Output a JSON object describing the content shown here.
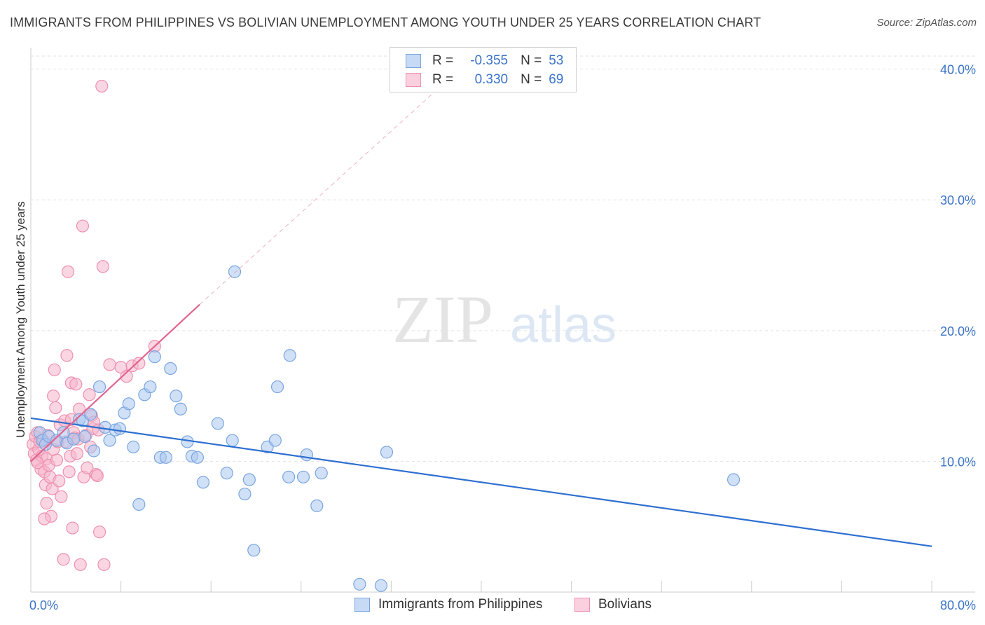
{
  "header": {
    "title": "IMMIGRANTS FROM PHILIPPINES VS BOLIVIAN UNEMPLOYMENT AMONG YOUTH UNDER 25 YEARS CORRELATION CHART",
    "source": "Source: ZipAtlas.com"
  },
  "watermark": {
    "zip": "ZIP",
    "atlas": "atlas"
  },
  "stats_legend": {
    "rows": [
      {
        "r_label": "R =",
        "r_value": "-0.355",
        "n_label": "N =",
        "n_value": "53",
        "color": "#a9c7f0"
      },
      {
        "r_label": "R =",
        "r_value": "0.330",
        "n_label": "N =",
        "n_value": "69",
        "color": "#f6b5ca"
      }
    ]
  },
  "colors": {
    "blue_fill": "#a9c7f0",
    "blue_stroke": "#7aa6e0",
    "blue_line": "#2e6fd0",
    "pink_fill": "#f6b5ca",
    "pink_stroke": "#ee90ae",
    "pink_line": "#e0648f",
    "axis_text": "#3a73c8",
    "grid": "#e2e2e2"
  },
  "chart_data": {
    "type": "scatter",
    "title": "IMMIGRANTS FROM PHILIPPINES VS BOLIVIAN UNEMPLOYMENT AMONG YOUTH UNDER 25 YEARS CORRELATION CHART",
    "xlabel": "",
    "ylabel": "Unemployment Among Youth under 25 years",
    "x_ticks": [
      "0.0%",
      "80.0%"
    ],
    "y_ticks": [
      "10.0%",
      "20.0%",
      "30.0%",
      "40.0%"
    ],
    "xlim": [
      0,
      80
    ],
    "ylim": [
      0,
      41
    ],
    "grid": true,
    "legend_position": "bottom",
    "series": [
      {
        "name": "Immigrants from Philippines",
        "color": "#a9c7f0",
        "points": [
          [
            0.8,
            12.2
          ],
          [
            1.0,
            11.6
          ],
          [
            1.3,
            11.3
          ],
          [
            1.6,
            11.9
          ],
          [
            2.3,
            11.6
          ],
          [
            2.9,
            12.2
          ],
          [
            3.2,
            11.4
          ],
          [
            3.8,
            11.7
          ],
          [
            4.3,
            13.2
          ],
          [
            4.6,
            13.1
          ],
          [
            4.8,
            11.9
          ],
          [
            5.3,
            13.6
          ],
          [
            5.6,
            10.8
          ],
          [
            6.1,
            15.7
          ],
          [
            6.6,
            12.6
          ],
          [
            7.0,
            11.6
          ],
          [
            7.5,
            12.4
          ],
          [
            7.9,
            12.5
          ],
          [
            8.3,
            13.7
          ],
          [
            8.7,
            14.4
          ],
          [
            9.1,
            11.1
          ],
          [
            9.6,
            6.7
          ],
          [
            10.1,
            15.1
          ],
          [
            10.6,
            15.7
          ],
          [
            11.0,
            18.0
          ],
          [
            11.5,
            10.3
          ],
          [
            12.0,
            10.3
          ],
          [
            12.4,
            17.1
          ],
          [
            12.9,
            15.0
          ],
          [
            13.3,
            14.0
          ],
          [
            13.9,
            11.5
          ],
          [
            14.3,
            10.4
          ],
          [
            14.8,
            10.3
          ],
          [
            15.3,
            8.4
          ],
          [
            16.6,
            12.9
          ],
          [
            17.4,
            9.1
          ],
          [
            17.9,
            11.6
          ],
          [
            18.1,
            24.5
          ],
          [
            19.0,
            7.5
          ],
          [
            19.4,
            8.6
          ],
          [
            19.8,
            3.2
          ],
          [
            21.0,
            11.1
          ],
          [
            21.7,
            11.6
          ],
          [
            21.9,
            15.7
          ],
          [
            23.0,
            18.1
          ],
          [
            22.9,
            8.8
          ],
          [
            24.2,
            8.8
          ],
          [
            24.5,
            10.5
          ],
          [
            25.4,
            6.6
          ],
          [
            25.8,
            9.1
          ],
          [
            29.2,
            0.6
          ],
          [
            31.1,
            0.5
          ],
          [
            31.6,
            10.7
          ],
          [
            62.4,
            8.6
          ]
        ],
        "trend": {
          "x": [
            0,
            80
          ],
          "y": [
            13.3,
            3.5
          ]
        }
      },
      {
        "name": "Bolivians",
        "color": "#f6b5ca",
        "points": [
          [
            0.2,
            11.3
          ],
          [
            0.3,
            10.6
          ],
          [
            0.4,
            11.9
          ],
          [
            0.5,
            10.1
          ],
          [
            0.6,
            12.2
          ],
          [
            0.7,
            10.9
          ],
          [
            0.8,
            11.5
          ],
          [
            0.9,
            9.4
          ],
          [
            1.0,
            10.4
          ],
          [
            1.1,
            11.6
          ],
          [
            1.2,
            9.2
          ],
          [
            1.3,
            8.2
          ],
          [
            1.4,
            10.2
          ],
          [
            1.5,
            12.0
          ],
          [
            1.6,
            9.7
          ],
          [
            1.7,
            8.8
          ],
          [
            1.8,
            5.8
          ],
          [
            1.9,
            7.9
          ],
          [
            2.0,
            10.9
          ],
          [
            2.0,
            15.0
          ],
          [
            2.1,
            17.0
          ],
          [
            2.2,
            14.1
          ],
          [
            2.3,
            10.1
          ],
          [
            2.4,
            11.5
          ],
          [
            2.5,
            8.5
          ],
          [
            2.6,
            12.8
          ],
          [
            2.7,
            7.3
          ],
          [
            2.9,
            2.5
          ],
          [
            3.0,
            13.1
          ],
          [
            3.1,
            11.5
          ],
          [
            3.2,
            18.1
          ],
          [
            3.3,
            24.5
          ],
          [
            3.4,
            9.2
          ],
          [
            3.5,
            10.4
          ],
          [
            3.6,
            13.2
          ],
          [
            3.6,
            16.0
          ],
          [
            3.7,
            4.9
          ],
          [
            3.8,
            12.2
          ],
          [
            3.9,
            11.8
          ],
          [
            4.0,
            15.9
          ],
          [
            4.1,
            10.6
          ],
          [
            4.2,
            11.7
          ],
          [
            4.3,
            14.0
          ],
          [
            4.4,
            2.1
          ],
          [
            4.6,
            28.0
          ],
          [
            4.7,
            8.8
          ],
          [
            4.9,
            12.0
          ],
          [
            5.0,
            9.5
          ],
          [
            5.2,
            15.1
          ],
          [
            5.3,
            11.1
          ],
          [
            5.4,
            13.5
          ],
          [
            5.5,
            12.5
          ],
          [
            5.6,
            13.0
          ],
          [
            5.8,
            9.0
          ],
          [
            5.9,
            8.9
          ],
          [
            6.0,
            12.4
          ],
          [
            6.1,
            4.6
          ],
          [
            6.3,
            38.7
          ],
          [
            6.4,
            24.9
          ],
          [
            6.5,
            2.1
          ],
          [
            7.0,
            17.4
          ],
          [
            8.0,
            17.2
          ],
          [
            8.5,
            16.5
          ],
          [
            9.0,
            17.3
          ],
          [
            9.6,
            17.5
          ],
          [
            11.0,
            18.8
          ],
          [
            1.2,
            5.6
          ],
          [
            1.4,
            6.8
          ],
          [
            0.6,
            9.9
          ]
        ],
        "trend": {
          "x": [
            0,
            15
          ],
          "y": [
            10.0,
            22.0
          ]
        },
        "trend_extension": {
          "x": [
            15,
            40
          ],
          "y": [
            22.0,
            41.5
          ]
        }
      }
    ]
  }
}
